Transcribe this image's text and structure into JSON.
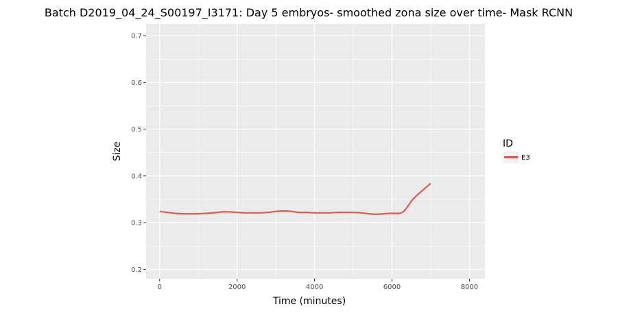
{
  "chart_data": {
    "type": "line",
    "title": "Batch D2019_04_24_S00197_I3171: Day 5 embryos- smoothed zona size over time- Mask RCNN",
    "xlabel": "Time (minutes)",
    "ylabel": "Size",
    "xlim": [
      -350,
      8400
    ],
    "ylim": [
      0.18,
      0.725
    ],
    "x_ticks": [
      0,
      2000,
      4000,
      6000,
      8000
    ],
    "x_tick_labels": [
      "0",
      "2000",
      "4000",
      "6000",
      "8000"
    ],
    "y_ticks": [
      0.2,
      0.3,
      0.4,
      0.5,
      0.6,
      0.7
    ],
    "y_tick_labels": [
      "0.2",
      "0.3",
      "0.4",
      "0.5",
      "0.6",
      "0.7"
    ],
    "grid": true,
    "legend": {
      "title": "ID",
      "position": "right"
    },
    "series": [
      {
        "name": "E3",
        "color": "#e05a4d",
        "x": [
          0,
          200,
          400,
          600,
          800,
          1000,
          1200,
          1400,
          1600,
          1800,
          2000,
          2200,
          2400,
          2600,
          2800,
          3000,
          3200,
          3400,
          3600,
          3800,
          4000,
          4200,
          4400,
          4600,
          4800,
          5000,
          5200,
          5400,
          5600,
          5800,
          6000,
          6200,
          6300,
          6400,
          6500,
          6600,
          6800,
          7000
        ],
        "y": [
          0.324,
          0.322,
          0.32,
          0.319,
          0.319,
          0.319,
          0.32,
          0.321,
          0.323,
          0.323,
          0.322,
          0.321,
          0.321,
          0.321,
          0.322,
          0.324,
          0.325,
          0.324,
          0.322,
          0.322,
          0.321,
          0.321,
          0.321,
          0.322,
          0.322,
          0.322,
          0.321,
          0.319,
          0.318,
          0.319,
          0.32,
          0.32,
          0.324,
          0.334,
          0.346,
          0.355,
          0.37,
          0.384
        ]
      }
    ]
  }
}
